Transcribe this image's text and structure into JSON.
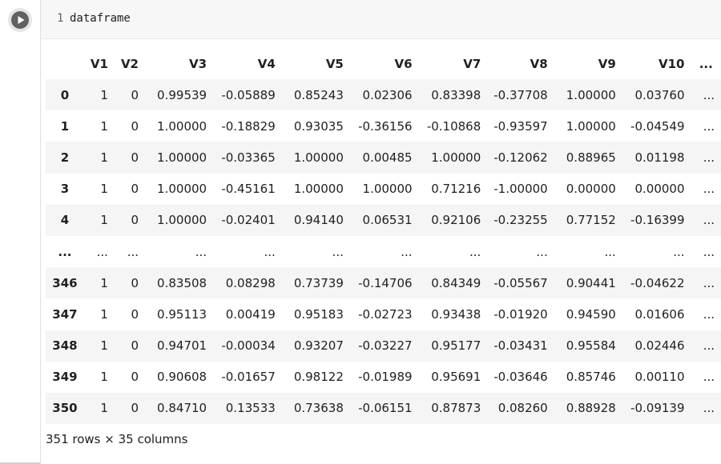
{
  "cell": {
    "line_number": "1",
    "code": "dataframe"
  },
  "table": {
    "columns": [
      "",
      "V1",
      "V2",
      "V3",
      "V4",
      "V5",
      "V6",
      "V7",
      "V8",
      "V9",
      "V10",
      "..."
    ],
    "rows": [
      [
        "0",
        "1",
        "0",
        "0.99539",
        "-0.05889",
        "0.85243",
        "0.02306",
        "0.83398",
        "-0.37708",
        "1.00000",
        "0.03760",
        "..."
      ],
      [
        "1",
        "1",
        "0",
        "1.00000",
        "-0.18829",
        "0.93035",
        "-0.36156",
        "-0.10868",
        "-0.93597",
        "1.00000",
        "-0.04549",
        "..."
      ],
      [
        "2",
        "1",
        "0",
        "1.00000",
        "-0.03365",
        "1.00000",
        "0.00485",
        "1.00000",
        "-0.12062",
        "0.88965",
        "0.01198",
        "..."
      ],
      [
        "3",
        "1",
        "0",
        "1.00000",
        "-0.45161",
        "1.00000",
        "1.00000",
        "0.71216",
        "-1.00000",
        "0.00000",
        "0.00000",
        "..."
      ],
      [
        "4",
        "1",
        "0",
        "1.00000",
        "-0.02401",
        "0.94140",
        "0.06531",
        "0.92106",
        "-0.23255",
        "0.77152",
        "-0.16399",
        "..."
      ],
      [
        "...",
        "...",
        "...",
        "...",
        "...",
        "...",
        "...",
        "...",
        "...",
        "...",
        "...",
        "..."
      ],
      [
        "346",
        "1",
        "0",
        "0.83508",
        "0.08298",
        "0.73739",
        "-0.14706",
        "0.84349",
        "-0.05567",
        "0.90441",
        "-0.04622",
        "..."
      ],
      [
        "347",
        "1",
        "0",
        "0.95113",
        "0.00419",
        "0.95183",
        "-0.02723",
        "0.93438",
        "-0.01920",
        "0.94590",
        "0.01606",
        "..."
      ],
      [
        "348",
        "1",
        "0",
        "0.94701",
        "-0.00034",
        "0.93207",
        "-0.03227",
        "0.95177",
        "-0.03431",
        "0.95584",
        "0.02446",
        "..."
      ],
      [
        "349",
        "1",
        "0",
        "0.90608",
        "-0.01657",
        "0.98122",
        "-0.01989",
        "0.95691",
        "-0.03646",
        "0.85746",
        "0.00110",
        "..."
      ],
      [
        "350",
        "1",
        "0",
        "0.84710",
        "0.13533",
        "0.73638",
        "-0.06151",
        "0.87873",
        "0.08260",
        "0.88928",
        "-0.09139",
        "..."
      ]
    ]
  },
  "summary": "351 rows × 35 columns",
  "icons": {
    "run": "play-icon"
  }
}
